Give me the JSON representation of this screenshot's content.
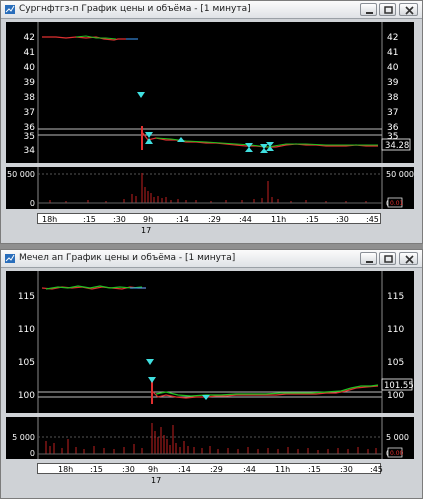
{
  "windows": [
    {
      "title": "Сургнфтгз-п График цены и объёма - [1 минута]",
      "price_ticks": [
        "42",
        "41",
        "40",
        "39",
        "38",
        "37",
        "36",
        "35",
        "34"
      ],
      "last_price": "34.28",
      "volume_ticks": [
        "50 000",
        "0"
      ],
      "volume_marker": "0.01",
      "time_ticks": [
        "18h",
        ":15",
        ":30",
        "9h",
        ":14",
        ":29",
        ":44",
        "11h",
        ":15",
        ":30",
        ":45"
      ],
      "date_label": "17"
    },
    {
      "title": "Мечел ап График цены и объёма - [1 минута]",
      "price_ticks": [
        "115",
        "110",
        "105",
        "100"
      ],
      "last_price": "101.55",
      "volume_ticks": [
        "5 000",
        "0"
      ],
      "volume_marker": "0.00",
      "time_ticks": [
        "18h",
        ":15",
        ":30",
        "9h",
        ":14",
        ":29",
        ":44",
        "11h",
        ":15",
        ":30",
        ":45"
      ],
      "date_label": "17"
    }
  ],
  "colors": {
    "background": "#000000",
    "up": "#00c000",
    "down": "#e02020",
    "marker": "#40e0e0",
    "line": "#b0b0b0"
  }
}
